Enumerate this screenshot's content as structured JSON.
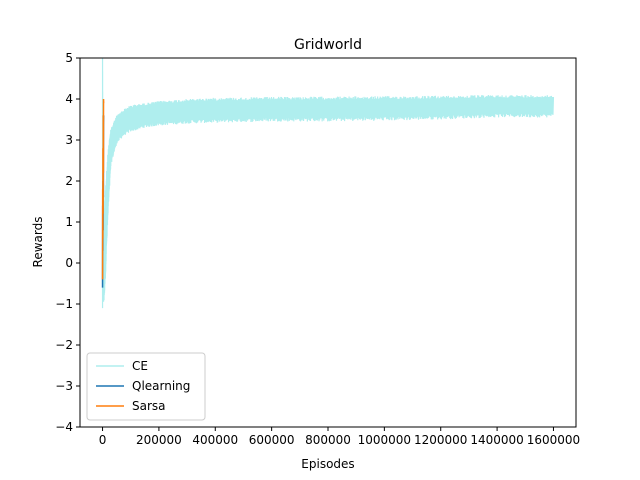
{
  "chart_data": {
    "type": "line",
    "title": "Gridworld",
    "xlabel": "Episodes",
    "ylabel": "Rewards",
    "xlim": [
      -80000,
      1680000
    ],
    "ylim": [
      -4,
      5
    ],
    "xticks": [
      0,
      200000,
      400000,
      600000,
      800000,
      1000000,
      1200000,
      1400000,
      1600000
    ],
    "xtick_labels": [
      "0",
      "200000",
      "400000",
      "600000",
      "800000",
      "1000000",
      "1200000",
      "1400000",
      "1600000"
    ],
    "yticks": [
      -4,
      -3,
      -2,
      -1,
      0,
      1,
      2,
      3,
      4,
      5
    ],
    "ytick_labels": [
      "−4",
      "−3",
      "−2",
      "−1",
      "0",
      "1",
      "2",
      "3",
      "4",
      "5"
    ],
    "legend_position": "lower-left",
    "grid": false,
    "series": [
      {
        "name": "CE",
        "color": "#afeeee",
        "style": "noisy-band",
        "x": [
          0,
          5000,
          10000,
          20000,
          30000,
          50000,
          75000,
          100000,
          150000,
          200000,
          300000,
          400000,
          600000,
          800000,
          1000000,
          1200000,
          1400000,
          1600000
        ],
        "upper": [
          5.0,
          1.0,
          1.8,
          2.8,
          3.3,
          3.6,
          3.75,
          3.85,
          3.9,
          3.95,
          4.0,
          4.03,
          4.05,
          4.06,
          4.07,
          4.08,
          4.1,
          4.1
        ],
        "lower": [
          -1.1,
          -1.0,
          -0.4,
          1.2,
          2.4,
          2.9,
          3.1,
          3.2,
          3.3,
          3.35,
          3.4,
          3.42,
          3.45,
          3.45,
          3.47,
          3.5,
          3.55,
          3.55
        ]
      },
      {
        "name": "Qlearning",
        "color": "#1f77b4",
        "x": [
          0,
          500,
          1000,
          1500,
          2000,
          2500,
          3000,
          3500,
          4000
        ],
        "values": [
          -0.6,
          1.4,
          0.3,
          2.0,
          0.8,
          3.0,
          1.6,
          3.4,
          3.6
        ]
      },
      {
        "name": "Sarsa",
        "color": "#ff7f0e",
        "x": [
          0,
          500,
          1000,
          1500,
          2000,
          2500,
          3000,
          3500,
          4000
        ],
        "values": [
          -0.4,
          1.8,
          0.6,
          2.8,
          1.2,
          3.6,
          2.2,
          4.0,
          3.9
        ]
      }
    ]
  }
}
